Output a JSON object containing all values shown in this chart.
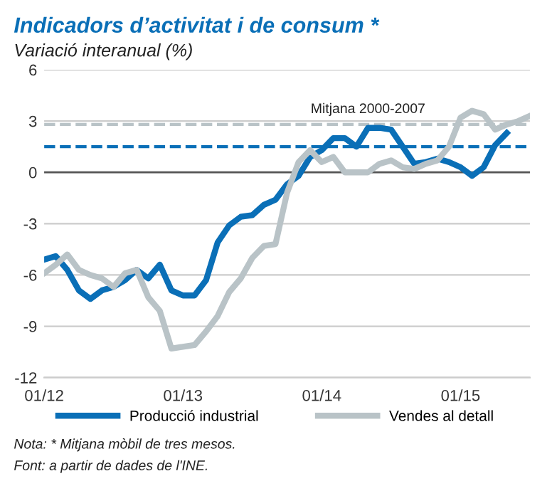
{
  "chart_data": {
    "type": "line",
    "title": "Indicadors d’activitat i de consum *",
    "subtitle": "Variació interanual (%)",
    "x": [
      "2012-01",
      "2012-02",
      "2012-03",
      "2012-04",
      "2012-05",
      "2012-06",
      "2012-07",
      "2012-08",
      "2012-09",
      "2012-10",
      "2012-11",
      "2012-12",
      "2013-01",
      "2013-02",
      "2013-03",
      "2013-04",
      "2013-05",
      "2013-06",
      "2013-07",
      "2013-08",
      "2013-09",
      "2013-10",
      "2013-11",
      "2013-12",
      "2014-01",
      "2014-02",
      "2014-03",
      "2014-04",
      "2014-05",
      "2014-06",
      "2014-07",
      "2014-08",
      "2014-09",
      "2014-10",
      "2014-11",
      "2014-12",
      "2015-01",
      "2015-02",
      "2015-03",
      "2015-04",
      "2015-05",
      "2015-06",
      "2015-07"
    ],
    "xlim": [
      "2012-01",
      "2015-07"
    ],
    "xticks": [
      {
        "value": "2012-01",
        "label": "01/12"
      },
      {
        "value": "2013-01",
        "label": "01/13"
      },
      {
        "value": "2014-01",
        "label": "01/14"
      },
      {
        "value": "2015-01",
        "label": "01/15"
      }
    ],
    "ylim": [
      -12,
      6
    ],
    "yticks": [
      -12,
      -9,
      -6,
      -3,
      0,
      3,
      6
    ],
    "grid": "y",
    "legend": "bottom",
    "line_style": "solid",
    "marker": "none",
    "series": [
      {
        "name": "Producció industrial",
        "color": "#0a6fb7",
        "values": [
          -5.1,
          -4.9,
          -5.7,
          -6.9,
          -7.4,
          -6.9,
          -6.7,
          -6.3,
          -5.7,
          -6.2,
          -5.4,
          -6.9,
          -7.2,
          -7.2,
          -6.3,
          -4.1,
          -3.1,
          -2.6,
          -2.5,
          -1.9,
          -1.6,
          -0.7,
          -0.2,
          0.9,
          1.3,
          2.0,
          2.0,
          1.5,
          2.6,
          2.6,
          2.5,
          1.5,
          0.5,
          0.6,
          0.8,
          0.6,
          0.3,
          -0.2,
          0.3,
          1.6,
          2.3,
          null,
          null
        ]
      },
      {
        "name": "Vendes al detall",
        "color": "#b9c3c7",
        "values": [
          -5.9,
          -5.4,
          -4.8,
          -5.7,
          -6.0,
          -6.2,
          -6.7,
          -5.9,
          -5.7,
          -7.3,
          -8.1,
          -10.3,
          -10.2,
          -10.1,
          -9.3,
          -8.4,
          -7.0,
          -6.2,
          -5.0,
          -4.3,
          -4.2,
          -1.2,
          0.6,
          1.3,
          0.6,
          0.9,
          0,
          0,
          0,
          0.5,
          0.7,
          0.3,
          0.2,
          0.5,
          0.7,
          1.5,
          3.2,
          3.6,
          3.4,
          2.5,
          2.8,
          3.0,
          3.3
        ]
      }
    ],
    "ref_lines": [
      {
        "axis": "y",
        "value": 2.8,
        "color": "#b9c3c7",
        "line_style": "dashed"
      },
      {
        "axis": "y",
        "value": 1.5,
        "color": "#0a6fb7",
        "line_style": "dashed"
      }
    ],
    "annotations": [
      {
        "text": "Mitjana 2000-2007",
        "x": "2014-05",
        "y": 2.8
      },
      "Nota: * Mitjana mòbil de tres mesos.",
      "Font: a partir de dades de l'INE."
    ]
  }
}
